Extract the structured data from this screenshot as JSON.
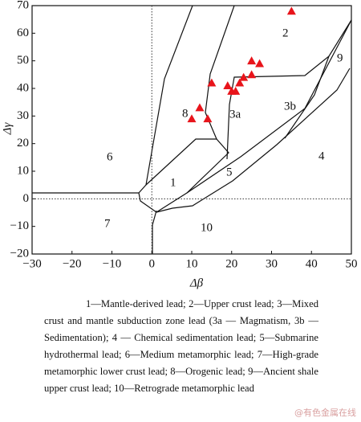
{
  "chart_data": {
    "type": "scatter",
    "xlabel": "Δβ",
    "ylabel": "Δγ",
    "x": [
      35,
      25,
      27,
      15,
      19,
      20,
      21,
      22,
      23,
      25,
      12,
      10,
      14
    ],
    "values": [
      68,
      50,
      49,
      42,
      41,
      39,
      39,
      42,
      44,
      45,
      33,
      29,
      29
    ],
    "color": "#e8141b",
    "marker": "triangle",
    "xlim": [
      -30,
      50
    ],
    "ylim": [
      -20,
      70
    ],
    "xticks": [
      {
        "value": -30,
        "label": "−30"
      },
      {
        "value": -20,
        "label": "−20"
      },
      {
        "value": -10,
        "label": "−10"
      },
      0,
      10,
      20,
      30,
      40,
      50
    ],
    "yticks": [
      {
        "value": -20,
        "label": "−20"
      },
      {
        "value": -10,
        "label": "−10"
      },
      0,
      10,
      20,
      30,
      40,
      50,
      60,
      70
    ],
    "reference_lines": {
      "x": 0,
      "y": 0
    },
    "annotations": [
      "1",
      "2",
      "3a",
      "3b",
      "4",
      "5",
      "6",
      "7",
      "8",
      "9",
      "10"
    ]
  },
  "caption": "1—Mantle-derived lead; 2—Upper crust lead; 3—Mixed crust and mantle subduction zone lead (3a — Magmatism, 3b — Sedimentation); 4 — Chemical sedimentation lead; 5—Submarine hydrothermal lead; 6—Medium metamorphic lead; 7—High-grade metamorphic lower crust lead; 8—Orogenic lead; 9—Ancient shale upper crust lead; 10—Retrograde metamorphic lead",
  "watermark": "@有色金属在线"
}
